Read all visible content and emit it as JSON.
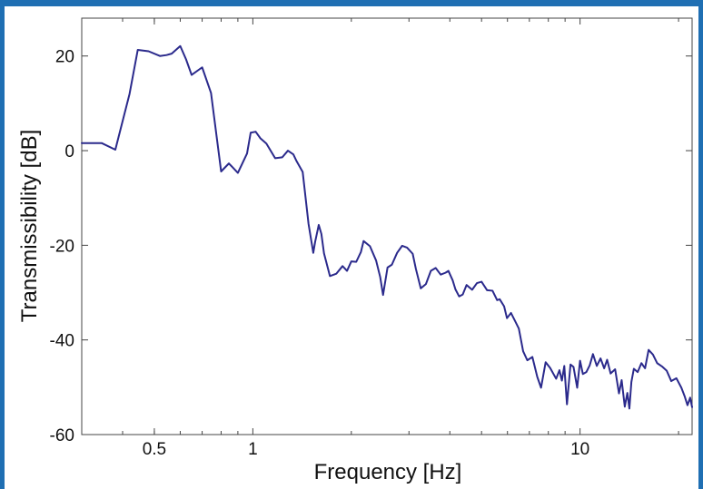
{
  "colors": {
    "frame": "#1f6fb3",
    "axes": "#444444",
    "line": "#2b2a8c"
  },
  "chart_data": {
    "type": "line",
    "title": "",
    "xlabel": "Frequency [Hz]",
    "ylabel": "Transmissibility [dB]",
    "xscale": "log",
    "xlim": [
      0.3,
      22
    ],
    "ylim": [
      -60,
      28
    ],
    "grid": false,
    "x_ticks": [
      {
        "value": 0.5,
        "label": "0.5"
      },
      {
        "value": 1,
        "label": "1"
      },
      {
        "value": 10,
        "label": "10"
      }
    ],
    "y_ticks": [
      {
        "value": 20,
        "label": "20"
      },
      {
        "value": 0,
        "label": "0"
      },
      {
        "value": -20,
        "label": "-20"
      },
      {
        "value": -40,
        "label": "-40"
      },
      {
        "value": -60,
        "label": "-60"
      }
    ],
    "series": [
      {
        "x": [
          0.3,
          0.345,
          0.38,
          0.42,
          0.445,
          0.48,
          0.52,
          0.545,
          0.565,
          0.6,
          0.625,
          0.65,
          0.7,
          0.745,
          0.8,
          0.845,
          0.9,
          0.96,
          0.985,
          1.02,
          1.055,
          1.1,
          1.17,
          1.23,
          1.28,
          1.33,
          1.36,
          1.42,
          1.48,
          1.53,
          1.55,
          1.59,
          1.62,
          1.65,
          1.72,
          1.8,
          1.88,
          1.94,
          2.0,
          2.07,
          2.14,
          2.18,
          2.28,
          2.38,
          2.45,
          2.5,
          2.58,
          2.66,
          2.76,
          2.86,
          2.96,
          3.08,
          3.15,
          3.26,
          3.38,
          3.5,
          3.62,
          3.75,
          3.88,
          3.96,
          4.08,
          4.16,
          4.27,
          4.38,
          4.5,
          4.68,
          4.84,
          5.0,
          5.2,
          5.4,
          5.58,
          5.68,
          5.86,
          5.98,
          6.15,
          6.35,
          6.5,
          6.7,
          6.9,
          7.15,
          7.4,
          7.6,
          7.85,
          8.1,
          8.45,
          8.65,
          8.8,
          8.95,
          9.12,
          9.35,
          9.55,
          9.8,
          10.0,
          10.2,
          10.45,
          10.7,
          10.95,
          11.25,
          11.55,
          11.85,
          12.1,
          12.4,
          12.8,
          13.15,
          13.4,
          13.7,
          13.95,
          14.15,
          14.35,
          14.6,
          15.0,
          15.4,
          15.8,
          16.2,
          16.7,
          17.2,
          17.8,
          18.4,
          19.0,
          19.7,
          20.4,
          20.9,
          21.3,
          21.7,
          22.0
        ],
        "y": [
          1.6,
          1.6,
          0.2,
          12.0,
          21.3,
          21.0,
          20.0,
          20.2,
          20.5,
          22.1,
          19.3,
          16.0,
          17.6,
          12.2,
          -4.4,
          -2.7,
          -4.7,
          -0.6,
          3.8,
          4.0,
          2.6,
          1.5,
          -1.6,
          -1.4,
          0.0,
          -0.8,
          -2.2,
          -4.5,
          -15.5,
          -21.6,
          -19.3,
          -15.7,
          -17.6,
          -21.7,
          -26.5,
          -26.0,
          -24.4,
          -25.4,
          -23.4,
          -23.5,
          -21.4,
          -19.1,
          -20.2,
          -23.2,
          -26.7,
          -30.5,
          -24.7,
          -24.1,
          -21.6,
          -20.1,
          -20.5,
          -21.8,
          -25.0,
          -29.1,
          -28.2,
          -25.4,
          -24.8,
          -26.2,
          -25.8,
          -25.4,
          -27.4,
          -29.3,
          -30.8,
          -30.4,
          -28.4,
          -29.4,
          -28.0,
          -27.7,
          -29.5,
          -29.6,
          -31.6,
          -31.4,
          -32.9,
          -35.4,
          -34.3,
          -36.2,
          -37.6,
          -42.4,
          -44.3,
          -43.6,
          -47.8,
          -50.1,
          -44.7,
          -45.9,
          -48.2,
          -46.4,
          -48.6,
          -45.5,
          -53.6,
          -45.2,
          -45.7,
          -50.1,
          -44.4,
          -47.2,
          -46.8,
          -45.4,
          -43.0,
          -45.5,
          -43.9,
          -46.0,
          -44.2,
          -47.1,
          -46.2,
          -51.3,
          -48.5,
          -54.1,
          -51.2,
          -54.5,
          -48.9,
          -46.1,
          -46.8,
          -44.9,
          -46.0,
          -42.1,
          -43.1,
          -44.9,
          -45.6,
          -46.5,
          -48.7,
          -48.1,
          -50.1,
          -52.0,
          -53.8,
          -52.2,
          -54.2
        ]
      }
    ]
  }
}
